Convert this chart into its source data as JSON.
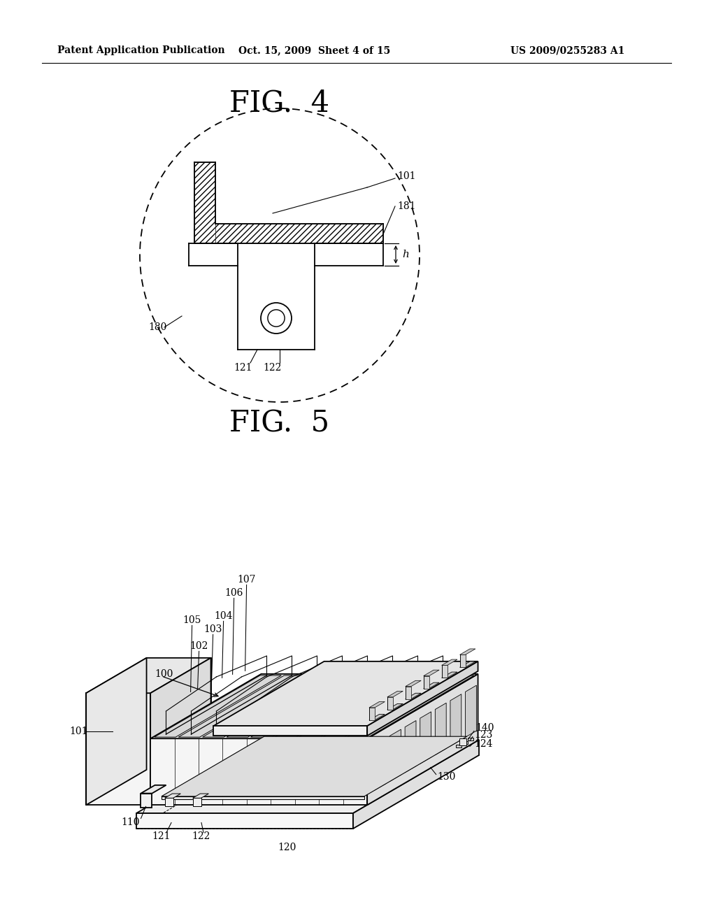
{
  "bg_color": "#ffffff",
  "header_left": "Patent Application Publication",
  "header_center": "Oct. 15, 2009  Sheet 4 of 15",
  "header_right": "US 2009/0255283 A1",
  "fig4_title": "FIG.  4",
  "fig5_title": "FIG.  5",
  "line_color": "#000000"
}
